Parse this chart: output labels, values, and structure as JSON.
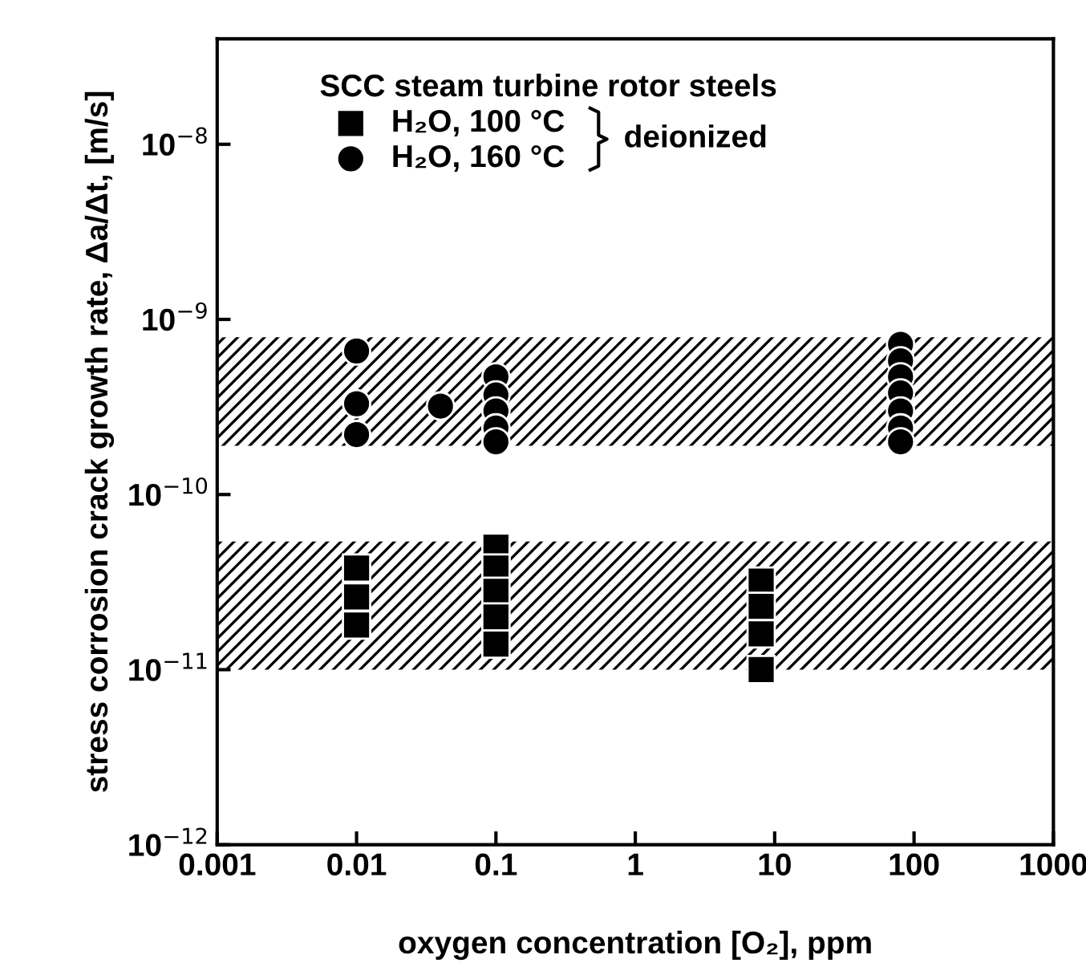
{
  "chart_data": {
    "type": "scatter",
    "xlabel": "oxygen concentration [O₂], ppm",
    "ylabel": "stress corrosion crack growth rate, Δa/Δt, [m/s]",
    "legend_title": "SCC steam turbine rotor steels",
    "legend": "top left",
    "log": "xy",
    "grid": false,
    "xlim": [
      0.001,
      1000
    ],
    "xticks": [
      0.001,
      0.01,
      0.1,
      1,
      10,
      100,
      1000
    ],
    "ylim": [
      1e-12,
      4e-08
    ],
    "yticks": [
      {
        "value": 1e-12,
        "label": "10$^{−12}$"
      },
      {
        "value": 1e-11,
        "label": "10$^{−11}$"
      },
      {
        "value": 1e-10,
        "label": "10$^{−10}$"
      },
      {
        "value": 1e-09,
        "label": "10$^{−9}$"
      },
      {
        "value": 1e-08,
        "label": "10$^{−8}$"
      }
    ],
    "bands": [
      {
        "axis": "y",
        "from": 1.9e-10,
        "to": 7.9e-10,
        "color": "#000000"
      },
      {
        "axis": "y",
        "from": 1e-11,
        "to": 5.4e-11,
        "color": "#000000"
      }
    ],
    "annotations": [
      "deionized"
    ],
    "series": [
      {
        "name": "H₂O, 100 °C",
        "color": "#000000",
        "marker": "square",
        "x": [
          0.01,
          0.01,
          0.01,
          0.1,
          0.1,
          0.1,
          0.1,
          0.1,
          8,
          8,
          8,
          8
        ],
        "values": [
          3.8e-11,
          2.6e-11,
          1.8e-11,
          5e-11,
          3.8e-11,
          2.8e-11,
          2e-11,
          1.4e-11,
          3.2e-11,
          2.3e-11,
          1.6e-11,
          1e-11
        ]
      },
      {
        "name": "H₂O, 160 °C",
        "color": "#000000",
        "marker": "circle",
        "x": [
          0.01,
          0.01,
          0.01,
          0.04,
          0.1,
          0.1,
          0.1,
          0.1,
          0.1,
          80,
          80,
          80,
          80,
          80,
          80,
          80
        ],
        "values": [
          6.6e-10,
          3.3e-10,
          2.2e-10,
          3.2e-10,
          4.7e-10,
          3.7e-10,
          3e-10,
          2.4e-10,
          2e-10,
          7.2e-10,
          5.8e-10,
          4.7e-10,
          3.8e-10,
          3e-10,
          2.4e-10,
          2e-10
        ]
      }
    ]
  }
}
